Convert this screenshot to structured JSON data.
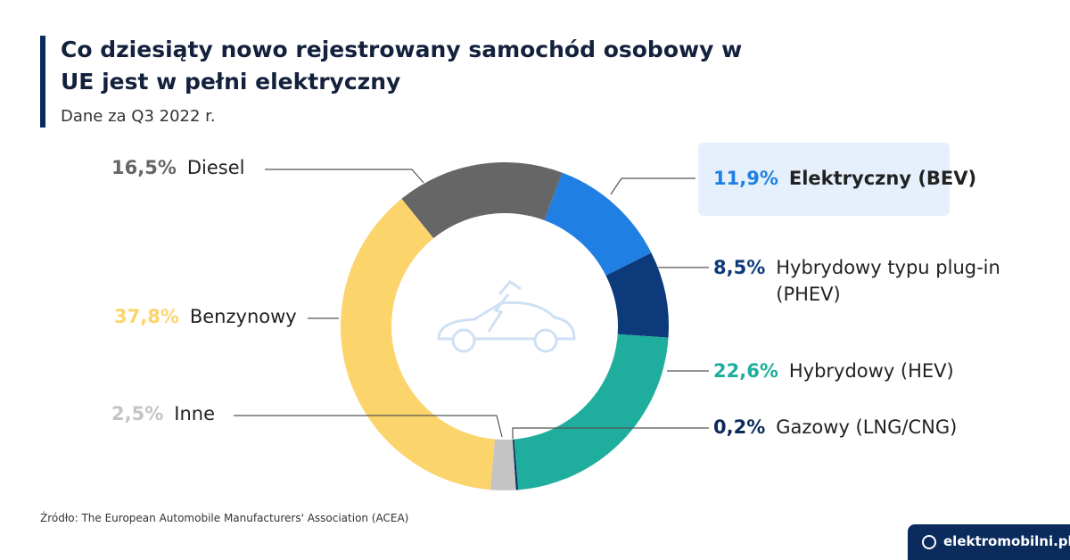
{
  "chart_data": {
    "type": "pie",
    "title": "Co dziesiąty nowo rejestrowany samochód osobowy w UE jest w pełni elektryczny",
    "subtitle": "Dane za Q3 2022 r.",
    "categories": [
      "Elektryczny (BEV)",
      "Hybrydowy typu plug-in (PHEV)",
      "Hybrydowy (HEV)",
      "Gazowy (LNG/CNG)",
      "Inne",
      "Benzynowy",
      "Diesel"
    ],
    "values": [
      11.9,
      8.5,
      22.6,
      0.2,
      2.5,
      37.8,
      16.5
    ],
    "value_labels": [
      "11,9%",
      "8,5%",
      "22,6%",
      "0,2%",
      "2,5%",
      "37,8%",
      "16,5%"
    ],
    "colors": [
      "#1f7fe3",
      "#0c3a7a",
      "#1fae9d",
      "#0b2b5c",
      "#c4c4c4",
      "#fcd46c",
      "#666666"
    ],
    "source": "Źródło: The European Automobile Manufacturers' Association (ACEA)"
  },
  "brand": "elektromobilni.pl"
}
